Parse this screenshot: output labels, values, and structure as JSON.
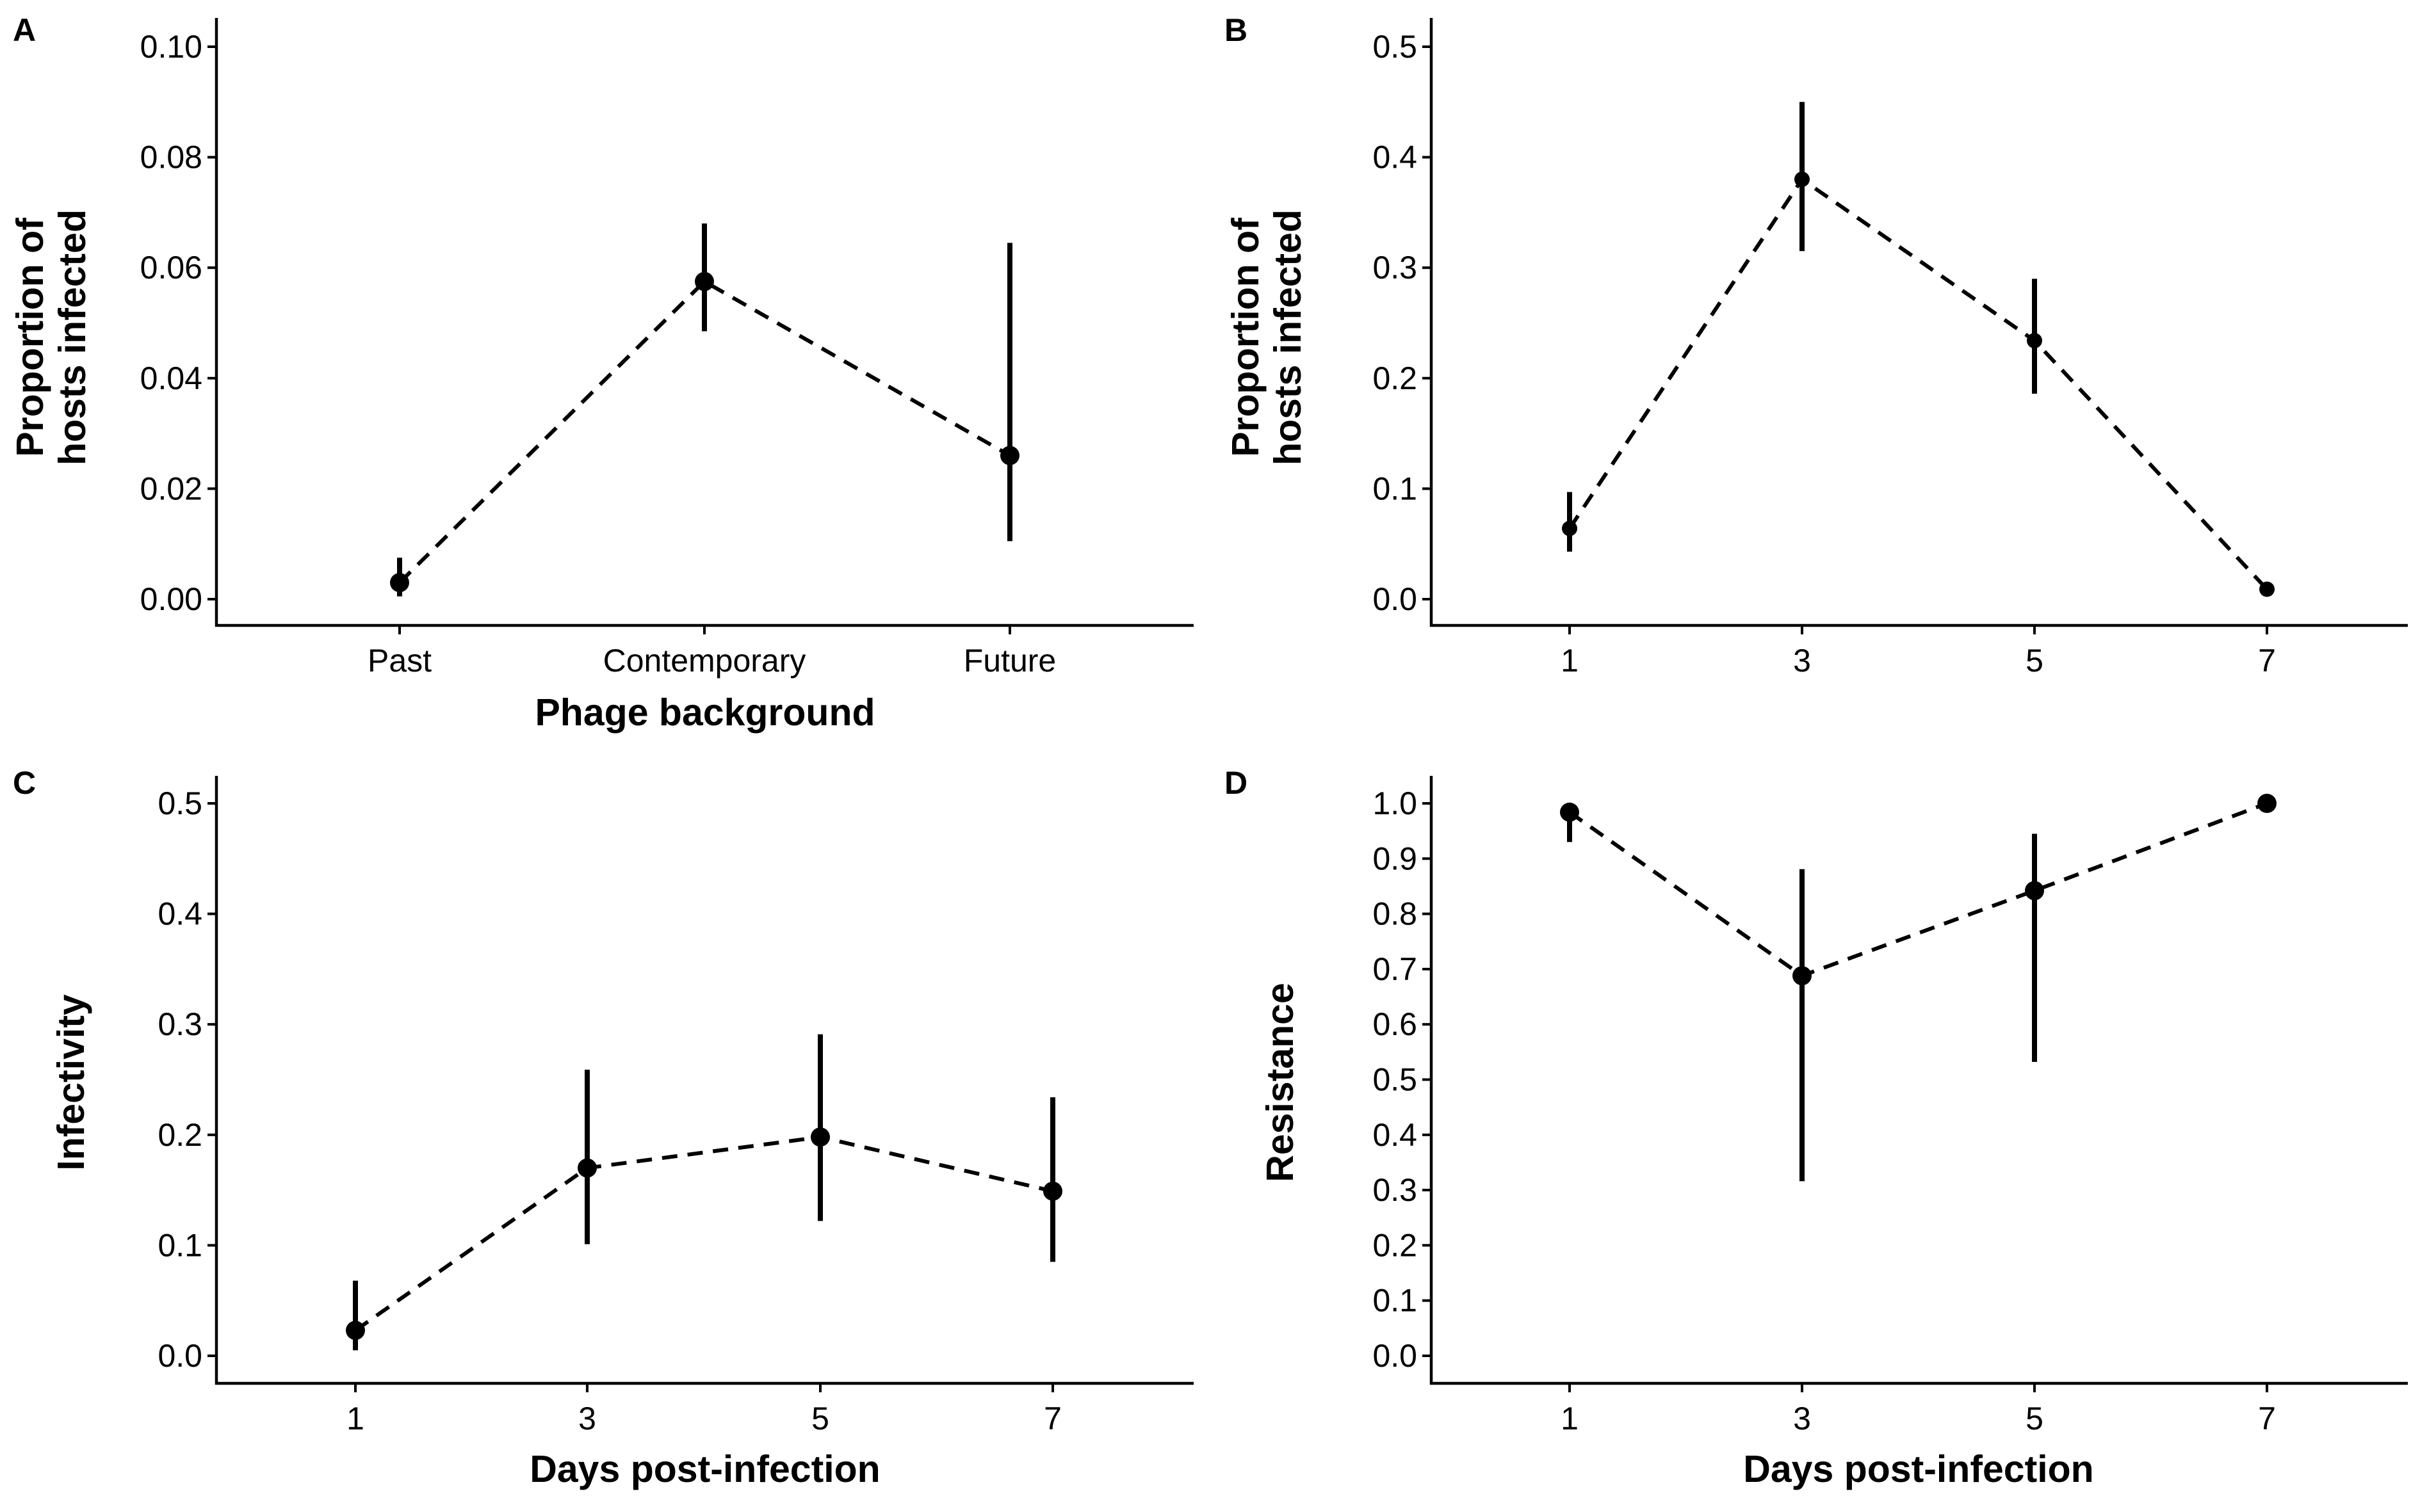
{
  "chart_data": [
    {
      "panel": "A",
      "type": "line",
      "title": "",
      "xlabel": "Phage background",
      "ylabel": [
        "Proportion of",
        "hosts infected"
      ],
      "categories": [
        "Past",
        "Contemporary",
        "Future"
      ],
      "ylim": [
        0,
        0.1
      ],
      "yticks": [
        "0.00",
        "0.02",
        "0.04",
        "0.06",
        "0.08",
        "0.10"
      ],
      "points": [
        {
          "x": "Past",
          "y": 0.003,
          "lo": 0.0005,
          "hi": 0.0075
        },
        {
          "x": "Contemporary",
          "y": 0.0575,
          "lo": 0.0485,
          "hi": 0.068
        },
        {
          "x": "Future",
          "y": 0.026,
          "lo": 0.0105,
          "hi": 0.0645
        }
      ],
      "grid": false,
      "legend": "none"
    },
    {
      "panel": "B",
      "type": "line",
      "title": "",
      "xlabel": "",
      "ylabel": [
        "Proportion of",
        "hosts infected"
      ],
      "xticks": [
        "1",
        "3",
        "5",
        "7"
      ],
      "ylim": [
        0,
        0.5
      ],
      "yticks": [
        "0.0",
        "0.1",
        "0.2",
        "0.3",
        "0.4",
        "0.5"
      ],
      "points": [
        {
          "x": 1,
          "y": 0.064,
          "lo": 0.043,
          "hi": 0.097
        },
        {
          "x": 3,
          "y": 0.38,
          "lo": 0.315,
          "hi": 0.45
        },
        {
          "x": 5,
          "y": 0.234,
          "lo": 0.186,
          "hi": 0.29
        },
        {
          "x": 7,
          "y": 0.009,
          "lo": 0.009,
          "hi": 0.009
        }
      ],
      "grid": false,
      "legend": "none"
    },
    {
      "panel": "C",
      "type": "line",
      "title": "",
      "xlabel": "Days post-infection",
      "ylabel": [
        "Infectivity"
      ],
      "xticks": [
        "1",
        "3",
        "5",
        "7"
      ],
      "ylim": [
        0,
        0.5
      ],
      "yticks": [
        "0.0",
        "0.1",
        "0.2",
        "0.3",
        "0.4",
        "0.5"
      ],
      "points": [
        {
          "x": 1,
          "y": 0.023,
          "lo": 0.005,
          "hi": 0.068
        },
        {
          "x": 3,
          "y": 0.17,
          "lo": 0.101,
          "hi": 0.259
        },
        {
          "x": 5,
          "y": 0.198,
          "lo": 0.122,
          "hi": 0.291
        },
        {
          "x": 7,
          "y": 0.149,
          "lo": 0.085,
          "hi": 0.234
        }
      ],
      "grid": false,
      "legend": "none"
    },
    {
      "panel": "D",
      "type": "line",
      "title": "",
      "xlabel": "Days post-infection",
      "ylabel": [
        "Resistance"
      ],
      "xticks": [
        "1",
        "3",
        "5",
        "7"
      ],
      "ylim": [
        0,
        1.0
      ],
      "yticks": [
        "0.0",
        "0.1",
        "0.2",
        "0.3",
        "0.4",
        "0.5",
        "0.6",
        "0.7",
        "0.8",
        "0.9",
        "1.0"
      ],
      "points": [
        {
          "x": 1,
          "y": 0.984,
          "lo": 0.93,
          "hi": 0.984
        },
        {
          "x": 3,
          "y": 0.688,
          "lo": 0.316,
          "hi": 0.881
        },
        {
          "x": 5,
          "y": 0.842,
          "lo": 0.532,
          "hi": 0.945
        },
        {
          "x": 7,
          "y": 1.0,
          "lo": 1.0,
          "hi": 1.0
        }
      ],
      "grid": false,
      "legend": "none"
    }
  ]
}
